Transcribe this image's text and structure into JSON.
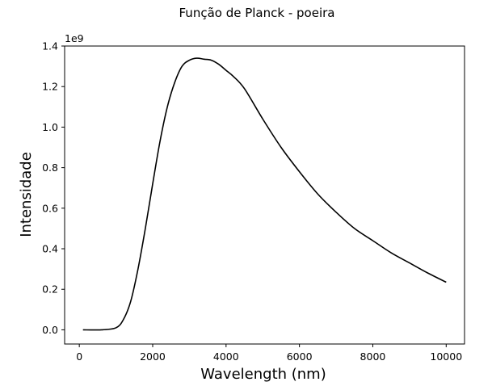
{
  "chart_data": {
    "type": "line",
    "title": "Função de Planck - poeira",
    "xlabel": "Wavelength (nm)",
    "ylabel": "Intensidade",
    "y_offset_label": "1e9",
    "xlim": [
      -400,
      10500
    ],
    "ylim": [
      -0.07,
      1.4
    ],
    "y_scale_factor": 1000000000.0,
    "grid": false,
    "x_ticks": [
      0,
      2000,
      4000,
      6000,
      8000,
      10000
    ],
    "x_tick_labels": [
      "0",
      "2000",
      "4000",
      "6000",
      "8000",
      "10000"
    ],
    "y_ticks": [
      0.0,
      0.2,
      0.4,
      0.6,
      0.8,
      1.0,
      1.2,
      1.4
    ],
    "y_tick_labels": [
      "0.0",
      "0.2",
      "0.4",
      "0.6",
      "0.8",
      "1.0",
      "1.2",
      "1.4"
    ],
    "series": [
      {
        "color": "#000000",
        "x": [
          100,
          600,
          1000,
          1200,
          1400,
          1600,
          1800,
          2000,
          2200,
          2400,
          2600,
          2800,
          3000,
          3200,
          3400,
          3600,
          3800,
          4000,
          4200,
          4500,
          5000,
          5500,
          6000,
          6500,
          7000,
          7500,
          8000,
          8500,
          9000,
          9500,
          10000
        ],
        "y": [
          0.0,
          0.0,
          0.01,
          0.05,
          0.14,
          0.3,
          0.5,
          0.72,
          0.93,
          1.1,
          1.22,
          1.3,
          1.33,
          1.34,
          1.335,
          1.33,
          1.31,
          1.28,
          1.25,
          1.19,
          1.04,
          0.9,
          0.78,
          0.67,
          0.58,
          0.5,
          0.44,
          0.38,
          0.33,
          0.28,
          0.235
        ]
      }
    ]
  }
}
